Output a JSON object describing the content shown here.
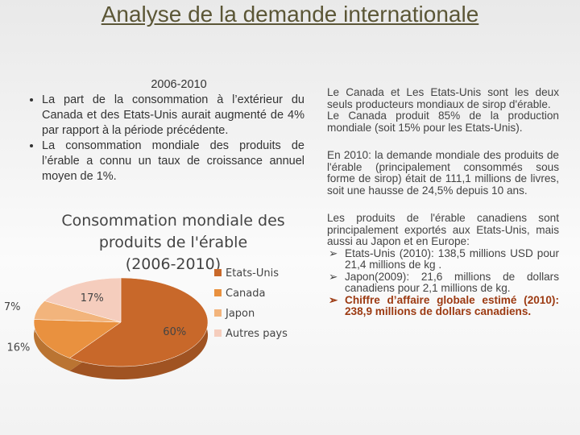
{
  "header": {
    "title": "Analyse de la demande internationale"
  },
  "left": {
    "heading": "2006-2010",
    "bullets": [
      "La part de la consommation à l’extérieur du Canada et des Etats-Unis aurait augmenté de 4% par rapport à la période précédente.",
      "La consommation mondiale des produits de l’érable a connu un taux de croissance annuel moyen de 1%."
    ]
  },
  "chart_data": {
    "type": "pie",
    "title": "Consommation mondiale des produits de l'érable (2006-2010)",
    "categories": [
      "Etats-Unis",
      "Canada",
      "Japon",
      "Autres pays"
    ],
    "values": [
      60,
      16,
      7,
      17
    ],
    "value_labels": [
      "60%",
      "16%",
      "7%",
      "17%"
    ],
    "colors": [
      "#c8682a",
      "#e9913f",
      "#f2b47c",
      "#f5cdbd"
    ],
    "legend": "right"
  },
  "right": {
    "paragraphs": [
      "Le Canada et Les Etats-Unis sont les deux seuls producteurs mondiaux de sirop d'érable.",
      "Le Canada produit 85% de la production mondiale (soit 15% pour les Etats-Unis).",
      "En 2010: la demande mondiale des produits de l'érable (principalement consommés sous forme de sirop) était de 111,1 millions de livres, soit une hausse de 24,5% depuis 10 ans.",
      "Les produits de l'érable canadiens sont principalement exportés aux Etats-Unis, mais aussi au Japon et en Europe:"
    ],
    "items": [
      "Etats-Unis (2010): 138,5 millions USD pour 21,4 millions de kg .",
      "Japon(2009): 21,6 millions de dollars canadiens pour 2,1 millions de kg.",
      "Chiffre d’affaire globale estimé (2010): 238,9 millions de dollars canadiens."
    ]
  }
}
